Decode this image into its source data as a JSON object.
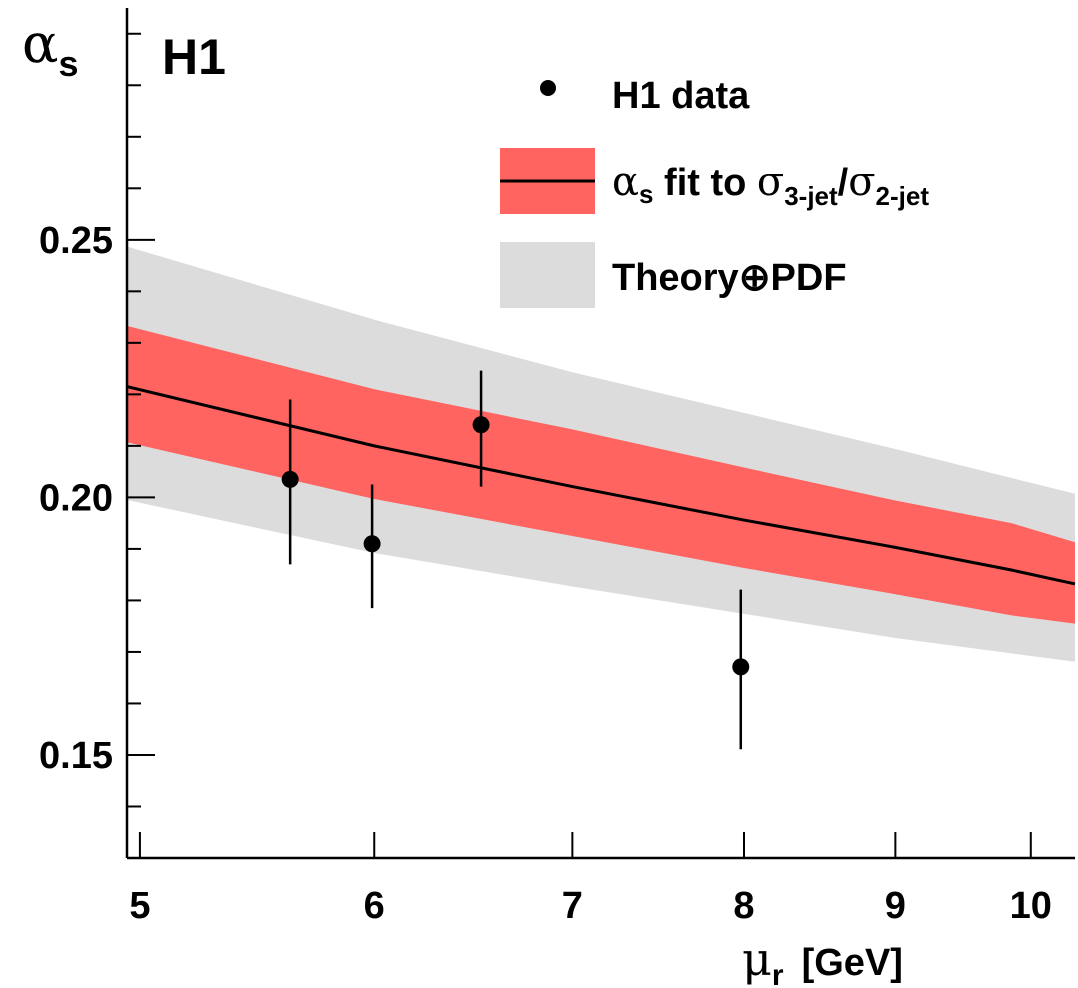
{
  "chart_data": {
    "type": "line",
    "experiment_label": "H1",
    "x_axis": {
      "label_symbol": "μ",
      "label_subscript": "r",
      "label_unit": "[GeV]",
      "scale": "log",
      "range": [
        4.95,
        10.35
      ],
      "ticks": [
        5,
        6,
        7,
        8,
        9,
        10
      ],
      "tick_labels": [
        "5",
        "6",
        "7",
        "8",
        "9",
        "10"
      ]
    },
    "y_axis": {
      "label_symbol": "α",
      "label_subscript": "s",
      "range": [
        0.13,
        0.295
      ],
      "ticks": [
        0.15,
        0.2,
        0.25
      ],
      "tick_labels": [
        "0.15",
        "0.20",
        "0.25"
      ]
    },
    "legend": {
      "placement": "top-right",
      "data_label": "H1 data",
      "fit_symbol": "α",
      "fit_sub": "s",
      "fit_text": " fit to ",
      "fit_sigma1": "σ",
      "fit_sigma1_sub": "3-jet",
      "fit_slash": "/",
      "fit_sigma2": "σ",
      "fit_sigma2_sub": "2-jet",
      "theory_label": "Theory⊕PDF"
    },
    "data_points": [
      {
        "x": 5.62,
        "y": 0.2035,
        "yerr_low": 0.0165,
        "yerr_high": 0.0155
      },
      {
        "x": 5.99,
        "y": 0.191,
        "yerr_low": 0.0125,
        "yerr_high": 0.0115
      },
      {
        "x": 6.52,
        "y": 0.2141,
        "yerr_low": 0.012,
        "yerr_high": 0.0105
      },
      {
        "x": 7.98,
        "y": 0.1671,
        "yerr_low": 0.016,
        "yerr_high": 0.015
      }
    ],
    "fit_band": {
      "x": [
        4.95,
        6.0,
        7.0,
        8.0,
        9.0,
        9.85,
        10.35
      ],
      "central": [
        0.2215,
        0.21,
        0.2021,
        0.1956,
        0.1903,
        0.1859,
        0.1832
      ],
      "lower": [
        0.2107,
        0.1997,
        0.1925,
        0.1863,
        0.1812,
        0.1771,
        0.1755
      ],
      "upper": [
        0.2333,
        0.221,
        0.2132,
        0.2058,
        0.1994,
        0.195,
        0.1913
      ]
    },
    "theory_band": {
      "x": [
        4.95,
        6.0,
        7.0,
        8.0,
        9.0,
        10.35
      ],
      "lower": [
        0.1995,
        0.1892,
        0.1827,
        0.1774,
        0.1727,
        0.1681
      ],
      "upper": [
        0.2487,
        0.2345,
        0.2243,
        0.2164,
        0.2094,
        0.2007
      ]
    },
    "colors": {
      "fit_band": "#ff6460",
      "theory_band": "#dcdcdc",
      "line": "#000000",
      "points": "#000000"
    },
    "grid": false
  }
}
